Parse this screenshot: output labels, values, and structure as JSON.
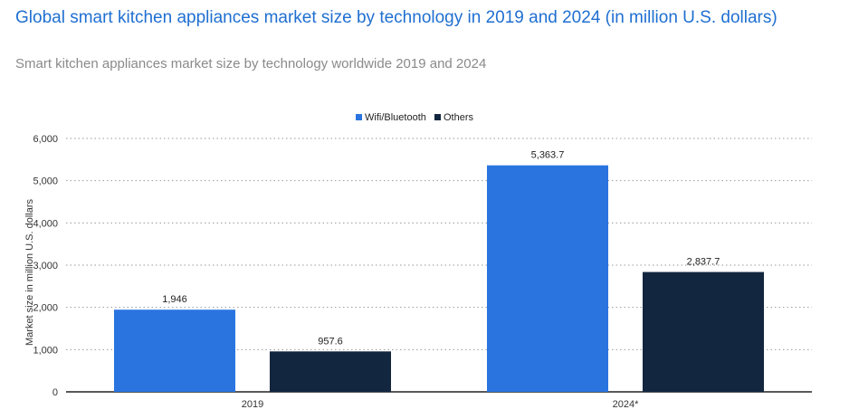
{
  "chart_data": {
    "type": "bar",
    "title": "Global smart kitchen appliances market size by technology in 2019 and 2024 (in million U.S. dollars)",
    "subtitle": "Smart kitchen appliances market size by technology worldwide 2019 and 2024",
    "categories": [
      "2019",
      "2024*"
    ],
    "series": [
      {
        "name": "Wifi/Bluetooth",
        "values": [
          1946,
          5363.7
        ],
        "labels": [
          "1,946",
          "5,363.7"
        ],
        "color": "#2a74e0"
      },
      {
        "name": "Others",
        "values": [
          957.6,
          2837.7
        ],
        "labels": [
          "957.6",
          "2,837.7"
        ],
        "color": "#13263f"
      }
    ],
    "ylabel": "Market size in million U.S. dollars",
    "xlabel": "",
    "ylim": [
      0,
      6000
    ],
    "yticks": [
      0,
      1000,
      2000,
      3000,
      4000,
      5000,
      6000
    ],
    "ytick_labels": [
      "0",
      "1,000",
      "2,000",
      "3,000",
      "4,000",
      "5,000",
      "6,000"
    ],
    "grid": true,
    "legend": "top-center"
  }
}
